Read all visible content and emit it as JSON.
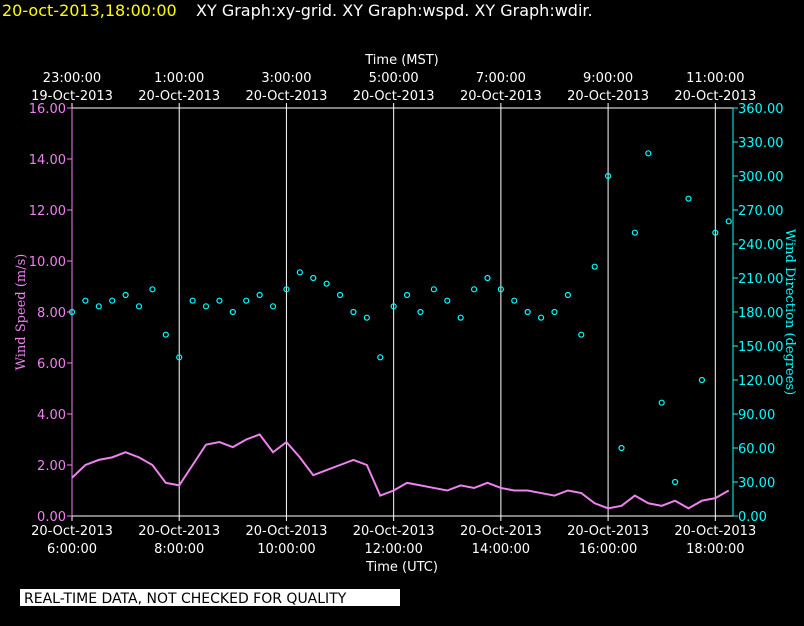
{
  "chart_data": {
    "type": "line-scatter",
    "header_time": "20-oct-2013,18:00:00",
    "title": "XY Graph:xy-grid.  XY Graph:wspd.  XY Graph:wdir.",
    "x_label": "Time (UTC)",
    "x2_label": "Time (MST)",
    "y_label": "Wind Speed (m/s)",
    "y2_label": "Wind Direction (degrees)",
    "notice": "REAL-TIME DATA, NOT CHECKED FOR QUALITY",
    "grid": true,
    "xlim": [
      6,
      18.33
    ],
    "xticks": [
      {
        "value": 6,
        "label": "6:00:00"
      },
      {
        "value": 8,
        "label": "8:00:00"
      },
      {
        "value": 10,
        "label": "10:00:00"
      },
      {
        "value": 12,
        "label": "12:00:00"
      },
      {
        "value": 14,
        "label": "14:00:00"
      },
      {
        "value": 16,
        "label": "16:00:00"
      },
      {
        "value": 18,
        "label": "18:00:00"
      }
    ],
    "xtick_dates": [
      "20-Oct-2013",
      "20-Oct-2013",
      "20-Oct-2013",
      "20-Oct-2013",
      "20-Oct-2013",
      "20-Oct-2013",
      "20-Oct-2013"
    ],
    "x2ticks": [
      {
        "value": 6,
        "label": "23:00:00"
      },
      {
        "value": 8,
        "label": "1:00:00"
      },
      {
        "value": 10,
        "label": "3:00:00"
      },
      {
        "value": 12,
        "label": "5:00:00"
      },
      {
        "value": 14,
        "label": "7:00:00"
      },
      {
        "value": 16,
        "label": "9:00:00"
      },
      {
        "value": 18,
        "label": "11:00:00"
      }
    ],
    "x2tick_dates": [
      "19-Oct-2013",
      "20-Oct-2013",
      "20-Oct-2013",
      "20-Oct-2013",
      "20-Oct-2013",
      "20-Oct-2013",
      "20-Oct-2013"
    ],
    "ylim": [
      0,
      16
    ],
    "yticks": [
      {
        "value": 0,
        "label": "0.00"
      },
      {
        "value": 2,
        "label": "2.00"
      },
      {
        "value": 4,
        "label": "4.00"
      },
      {
        "value": 6,
        "label": "6.00"
      },
      {
        "value": 8,
        "label": "8.00"
      },
      {
        "value": 10,
        "label": "10.00"
      },
      {
        "value": 12,
        "label": "12.00"
      },
      {
        "value": 14,
        "label": "14.00"
      },
      {
        "value": 16,
        "label": "16.00"
      }
    ],
    "y2lim": [
      0,
      360
    ],
    "y2ticks": [
      {
        "value": 0,
        "label": "0.00"
      },
      {
        "value": 30,
        "label": "30.00"
      },
      {
        "value": 60,
        "label": "60.00"
      },
      {
        "value": 90,
        "label": "90.00"
      },
      {
        "value": 120,
        "label": "120.00"
      },
      {
        "value": 150,
        "label": "150.00"
      },
      {
        "value": 180,
        "label": "180.00"
      },
      {
        "value": 210,
        "label": "210.00"
      },
      {
        "value": 240,
        "label": "240.00"
      },
      {
        "value": 270,
        "label": "270.00"
      },
      {
        "value": 300,
        "label": "300.00"
      },
      {
        "value": 330,
        "label": "330.00"
      },
      {
        "value": 360,
        "label": "360.00"
      }
    ],
    "x": [
      6,
      6.25,
      6.5,
      6.75,
      7,
      7.25,
      7.5,
      7.75,
      8,
      8.25,
      8.5,
      8.75,
      9,
      9.25,
      9.5,
      9.75,
      10,
      10.25,
      10.5,
      10.75,
      11,
      11.25,
      11.5,
      11.75,
      12,
      12.25,
      12.5,
      12.75,
      13,
      13.25,
      13.5,
      13.75,
      14,
      14.25,
      14.5,
      14.75,
      15,
      15.25,
      15.5,
      15.75,
      16,
      16.25,
      16.5,
      16.75,
      17,
      17.25,
      17.5,
      17.75,
      18,
      18.25
    ],
    "series": [
      {
        "color": "#ee82ee",
        "style": "line",
        "axis": "y",
        "values": [
          1.5,
          2.0,
          2.2,
          2.3,
          2.5,
          2.3,
          2.0,
          1.3,
          1.2,
          2.0,
          2.8,
          2.9,
          2.7,
          3.0,
          3.2,
          2.5,
          2.9,
          2.3,
          1.6,
          1.8,
          2.0,
          2.2,
          2.0,
          0.8,
          1.0,
          1.3,
          1.2,
          1.1,
          1.0,
          1.2,
          1.1,
          1.3,
          1.1,
          1.0,
          1.0,
          0.9,
          0.8,
          1.0,
          0.9,
          0.5,
          0.3,
          0.4,
          0.8,
          0.5,
          0.4,
          0.6,
          0.3,
          0.6,
          0.7,
          1.0
        ]
      },
      {
        "color": "#00ffff",
        "style": "scatter",
        "axis": "y2",
        "values": [
          180,
          190,
          185,
          190,
          195,
          185,
          200,
          160,
          140,
          190,
          185,
          190,
          180,
          190,
          195,
          185,
          200,
          215,
          210,
          205,
          195,
          180,
          175,
          140,
          185,
          195,
          180,
          200,
          190,
          175,
          200,
          210,
          200,
          190,
          180,
          175,
          180,
          195,
          160,
          220,
          300,
          60,
          250,
          320,
          100,
          30,
          280,
          120,
          250,
          260
        ]
      }
    ]
  }
}
